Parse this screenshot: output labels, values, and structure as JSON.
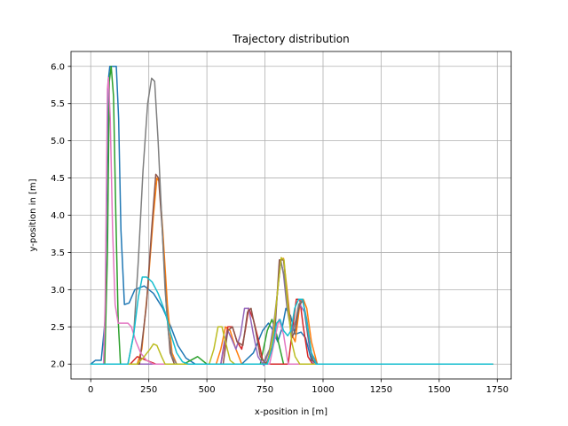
{
  "chart_data": {
    "type": "line",
    "title": "Trajectory distribution",
    "xlabel": "x-position in [m]",
    "ylabel": "y-position in [m]",
    "xlim": [
      -85,
      1810
    ],
    "ylim": [
      1.8,
      6.2
    ],
    "xticks": [
      0,
      250,
      500,
      750,
      1000,
      1250,
      1500,
      1750
    ],
    "xtick_labels": [
      "0",
      "250",
      "500",
      "750",
      "1000",
      "1250",
      "1500",
      "1750"
    ],
    "yticks": [
      2.0,
      2.5,
      3.0,
      3.5,
      4.0,
      4.5,
      5.0,
      5.5,
      6.0
    ],
    "ytick_labels": [
      "2.0",
      "2.5",
      "3.0",
      "3.5",
      "4.0",
      "4.5",
      "5.0",
      "5.5",
      "6.0"
    ],
    "grid": true,
    "series": [
      {
        "color": "#1f77b4",
        "points": [
          [
            0,
            2.0
          ],
          [
            20,
            2.05
          ],
          [
            45,
            2.05
          ],
          [
            62,
            2.6
          ],
          [
            75,
            5.8
          ],
          [
            82,
            6.0
          ],
          [
            110,
            6.0
          ],
          [
            120,
            5.3
          ],
          [
            130,
            3.8
          ],
          [
            145,
            2.8
          ],
          [
            165,
            2.82
          ],
          [
            190,
            3.0
          ],
          [
            230,
            3.05
          ],
          [
            270,
            2.95
          ],
          [
            310,
            2.75
          ],
          [
            345,
            2.5
          ],
          [
            375,
            2.25
          ],
          [
            410,
            2.08
          ],
          [
            450,
            2.0
          ],
          [
            650,
            2.0
          ],
          [
            700,
            2.15
          ],
          [
            740,
            2.45
          ],
          [
            765,
            2.55
          ],
          [
            785,
            2.45
          ],
          [
            805,
            2.3
          ],
          [
            825,
            2.5
          ],
          [
            840,
            2.75
          ],
          [
            860,
            2.65
          ],
          [
            880,
            2.4
          ],
          [
            905,
            2.43
          ],
          [
            925,
            2.35
          ],
          [
            950,
            2.05
          ],
          [
            975,
            2.0
          ],
          [
            1730,
            2.0
          ]
        ]
      },
      {
        "color": "#ff7f0e",
        "points": [
          [
            0,
            2.0
          ],
          [
            200,
            2.0
          ],
          [
            220,
            2.2
          ],
          [
            245,
            3.0
          ],
          [
            270,
            4.0
          ],
          [
            285,
            4.5
          ],
          [
            295,
            4.45
          ],
          [
            310,
            3.8
          ],
          [
            330,
            2.8
          ],
          [
            350,
            2.15
          ],
          [
            370,
            2.0
          ],
          [
            540,
            2.0
          ],
          [
            560,
            2.2
          ],
          [
            580,
            2.5
          ],
          [
            600,
            2.45
          ],
          [
            625,
            2.2
          ],
          [
            650,
            2.0
          ],
          [
            760,
            2.0
          ],
          [
            790,
            2.45
          ],
          [
            815,
            3.4
          ],
          [
            830,
            3.42
          ],
          [
            845,
            3.0
          ],
          [
            865,
            2.4
          ],
          [
            880,
            2.3
          ],
          [
            900,
            2.8
          ],
          [
            915,
            2.87
          ],
          [
            930,
            2.75
          ],
          [
            950,
            2.3
          ],
          [
            975,
            2.0
          ],
          [
            1730,
            2.0
          ]
        ]
      },
      {
        "color": "#2ca02c",
        "points": [
          [
            0,
            2.0
          ],
          [
            60,
            2.0
          ],
          [
            72,
            3.5
          ],
          [
            80,
            5.8
          ],
          [
            88,
            6.0
          ],
          [
            98,
            5.6
          ],
          [
            108,
            4.0
          ],
          [
            118,
            2.6
          ],
          [
            128,
            2.0
          ],
          [
            400,
            2.0
          ],
          [
            430,
            2.05
          ],
          [
            460,
            2.1
          ],
          [
            500,
            2.0
          ],
          [
            730,
            2.0
          ],
          [
            760,
            2.45
          ],
          [
            780,
            2.6
          ],
          [
            800,
            2.4
          ],
          [
            830,
            2.0
          ],
          [
            1730,
            2.0
          ]
        ]
      },
      {
        "color": "#d62728",
        "points": [
          [
            0,
            2.0
          ],
          [
            170,
            2.0
          ],
          [
            200,
            2.1
          ],
          [
            240,
            2.05
          ],
          [
            280,
            2.0
          ],
          [
            560,
            2.0
          ],
          [
            590,
            2.5
          ],
          [
            610,
            2.5
          ],
          [
            630,
            2.3
          ],
          [
            650,
            2.2
          ],
          [
            665,
            2.45
          ],
          [
            680,
            2.75
          ],
          [
            700,
            2.6
          ],
          [
            720,
            2.35
          ],
          [
            740,
            2.05
          ],
          [
            760,
            2.0
          ],
          [
            850,
            2.0
          ],
          [
            870,
            2.5
          ],
          [
            885,
            2.87
          ],
          [
            900,
            2.87
          ],
          [
            915,
            2.5
          ],
          [
            935,
            2.1
          ],
          [
            955,
            2.0
          ],
          [
            1730,
            2.0
          ]
        ]
      },
      {
        "color": "#9467bd",
        "points": [
          [
            0,
            2.0
          ],
          [
            560,
            2.0
          ],
          [
            575,
            2.3
          ],
          [
            590,
            2.45
          ],
          [
            605,
            2.35
          ],
          [
            625,
            2.2
          ],
          [
            645,
            2.4
          ],
          [
            662,
            2.75
          ],
          [
            680,
            2.75
          ],
          [
            700,
            2.4
          ],
          [
            720,
            2.1
          ],
          [
            745,
            1.98
          ],
          [
            770,
            2.2
          ],
          [
            790,
            2.6
          ],
          [
            805,
            3.0
          ],
          [
            818,
            3.4
          ],
          [
            830,
            3.2
          ],
          [
            845,
            2.75
          ],
          [
            865,
            2.45
          ],
          [
            885,
            2.6
          ],
          [
            900,
            2.8
          ],
          [
            920,
            2.7
          ],
          [
            940,
            2.25
          ],
          [
            960,
            2.0
          ],
          [
            1730,
            2.0
          ]
        ]
      },
      {
        "color": "#8c564b",
        "points": [
          [
            0,
            2.0
          ],
          [
            210,
            2.0
          ],
          [
            240,
            2.8
          ],
          [
            262,
            3.8
          ],
          [
            280,
            4.55
          ],
          [
            292,
            4.5
          ],
          [
            308,
            3.8
          ],
          [
            325,
            2.8
          ],
          [
            342,
            2.15
          ],
          [
            360,
            2.0
          ],
          [
            570,
            2.0
          ],
          [
            590,
            2.45
          ],
          [
            610,
            2.5
          ],
          [
            630,
            2.3
          ],
          [
            655,
            2.25
          ],
          [
            675,
            2.7
          ],
          [
            690,
            2.75
          ],
          [
            710,
            2.45
          ],
          [
            730,
            2.1
          ],
          [
            755,
            2.0
          ],
          [
            790,
            2.3
          ],
          [
            812,
            3.4
          ],
          [
            830,
            3.4
          ],
          [
            848,
            2.85
          ],
          [
            865,
            2.35
          ],
          [
            880,
            2.45
          ],
          [
            898,
            2.8
          ],
          [
            915,
            2.85
          ],
          [
            935,
            2.4
          ],
          [
            955,
            2.05
          ],
          [
            975,
            2.0
          ],
          [
            1730,
            2.0
          ]
        ]
      },
      {
        "color": "#e377c2",
        "points": [
          [
            0,
            2.0
          ],
          [
            55,
            2.0
          ],
          [
            62,
            2.8
          ],
          [
            68,
            4.5
          ],
          [
            72,
            5.7
          ],
          [
            76,
            5.85
          ],
          [
            84,
            5.3
          ],
          [
            94,
            3.8
          ],
          [
            105,
            2.8
          ],
          [
            118,
            2.55
          ],
          [
            140,
            2.55
          ],
          [
            160,
            2.55
          ],
          [
            175,
            2.5
          ],
          [
            195,
            2.3
          ],
          [
            215,
            2.15
          ],
          [
            240,
            2.05
          ],
          [
            270,
            2.0
          ],
          [
            770,
            2.0
          ],
          [
            790,
            2.3
          ],
          [
            810,
            2.6
          ],
          [
            830,
            2.4
          ],
          [
            850,
            2.0
          ],
          [
            1730,
            2.0
          ]
        ]
      },
      {
        "color": "#7f7f7f",
        "points": [
          [
            0,
            2.0
          ],
          [
            160,
            2.0
          ],
          [
            185,
            2.4
          ],
          [
            205,
            3.4
          ],
          [
            225,
            4.6
          ],
          [
            245,
            5.5
          ],
          [
            262,
            5.84
          ],
          [
            275,
            5.8
          ],
          [
            290,
            5.0
          ],
          [
            305,
            4.0
          ],
          [
            320,
            3.0
          ],
          [
            335,
            2.4
          ],
          [
            350,
            2.1
          ],
          [
            370,
            2.0
          ],
          [
            740,
            2.0
          ],
          [
            770,
            2.2
          ],
          [
            790,
            2.5
          ],
          [
            805,
            3.0
          ],
          [
            818,
            3.38
          ],
          [
            832,
            3.2
          ],
          [
            848,
            2.7
          ],
          [
            865,
            2.4
          ],
          [
            880,
            2.55
          ],
          [
            895,
            2.8
          ],
          [
            912,
            2.87
          ],
          [
            930,
            2.6
          ],
          [
            950,
            2.15
          ],
          [
            975,
            2.0
          ],
          [
            1730,
            2.0
          ]
        ]
      },
      {
        "color": "#bcbd22",
        "points": [
          [
            0,
            2.0
          ],
          [
            200,
            2.0
          ],
          [
            230,
            2.1
          ],
          [
            255,
            2.2
          ],
          [
            270,
            2.27
          ],
          [
            285,
            2.25
          ],
          [
            305,
            2.1
          ],
          [
            320,
            2.0
          ],
          [
            510,
            2.0
          ],
          [
            530,
            2.2
          ],
          [
            548,
            2.5
          ],
          [
            565,
            2.5
          ],
          [
            580,
            2.3
          ],
          [
            600,
            2.05
          ],
          [
            620,
            2.0
          ],
          [
            760,
            2.0
          ],
          [
            785,
            2.4
          ],
          [
            805,
            3.0
          ],
          [
            820,
            3.43
          ],
          [
            832,
            3.4
          ],
          [
            848,
            2.8
          ],
          [
            865,
            2.3
          ],
          [
            880,
            2.1
          ],
          [
            900,
            2.0
          ],
          [
            1730,
            2.0
          ]
        ]
      },
      {
        "color": "#17becf",
        "points": [
          [
            0,
            2.0
          ],
          [
            160,
            2.0
          ],
          [
            185,
            2.4
          ],
          [
            205,
            2.9
          ],
          [
            222,
            3.17
          ],
          [
            240,
            3.17
          ],
          [
            265,
            3.1
          ],
          [
            290,
            2.95
          ],
          [
            320,
            2.7
          ],
          [
            345,
            2.4
          ],
          [
            370,
            2.15
          ],
          [
            395,
            2.03
          ],
          [
            420,
            2.0
          ],
          [
            760,
            2.0
          ],
          [
            780,
            2.2
          ],
          [
            800,
            2.55
          ],
          [
            815,
            2.6
          ],
          [
            830,
            2.45
          ],
          [
            848,
            2.38
          ],
          [
            862,
            2.45
          ],
          [
            878,
            2.75
          ],
          [
            895,
            2.87
          ],
          [
            912,
            2.87
          ],
          [
            930,
            2.55
          ],
          [
            950,
            2.15
          ],
          [
            970,
            2.0
          ],
          [
            1730,
            2.0
          ]
        ]
      }
    ]
  }
}
